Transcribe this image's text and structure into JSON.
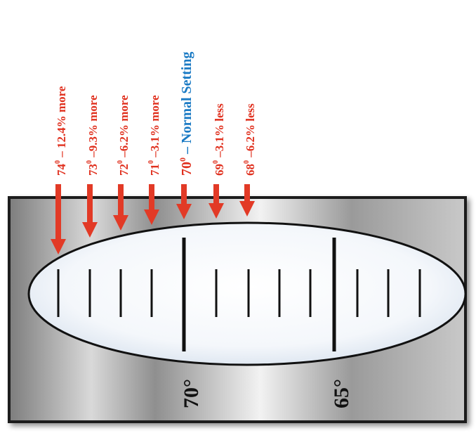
{
  "annotations": [
    {
      "degrees": "74",
      "superscript": "0",
      "detail": "– 12.4% more",
      "color": "#e0301e"
    },
    {
      "degrees": "73",
      "superscript": "0",
      "detail": "–9.3% more",
      "color": "#e0301e"
    },
    {
      "degrees": "72",
      "superscript": "0",
      "detail": "–6.2% more",
      "color": "#e0301e"
    },
    {
      "degrees": "71",
      "superscript": "0",
      "detail": "–3.1% more",
      "color": "#e0301e"
    },
    {
      "degrees": "70",
      "superscript": "0",
      "detail": "– Normal Setting",
      "color": "#e0301e",
      "detail_color": "#1a7ac4"
    },
    {
      "degrees": "69",
      "superscript": "0",
      "detail": "–3.1% less",
      "color": "#e0301e"
    },
    {
      "degrees": "68",
      "superscript": "0",
      "detail": "–6.2% less",
      "color": "#e0301e"
    }
  ],
  "dial_labels": [
    {
      "value": "70",
      "unit": "°"
    },
    {
      "value": "65",
      "unit": "°"
    }
  ],
  "colors": {
    "arrow": "#e23a26",
    "panel_dark": "#8a8a8a",
    "panel_light": "#f4f4f4",
    "window_fill": "#ffffff",
    "window_tint": "#dfe8f2",
    "tick": "#111111"
  }
}
